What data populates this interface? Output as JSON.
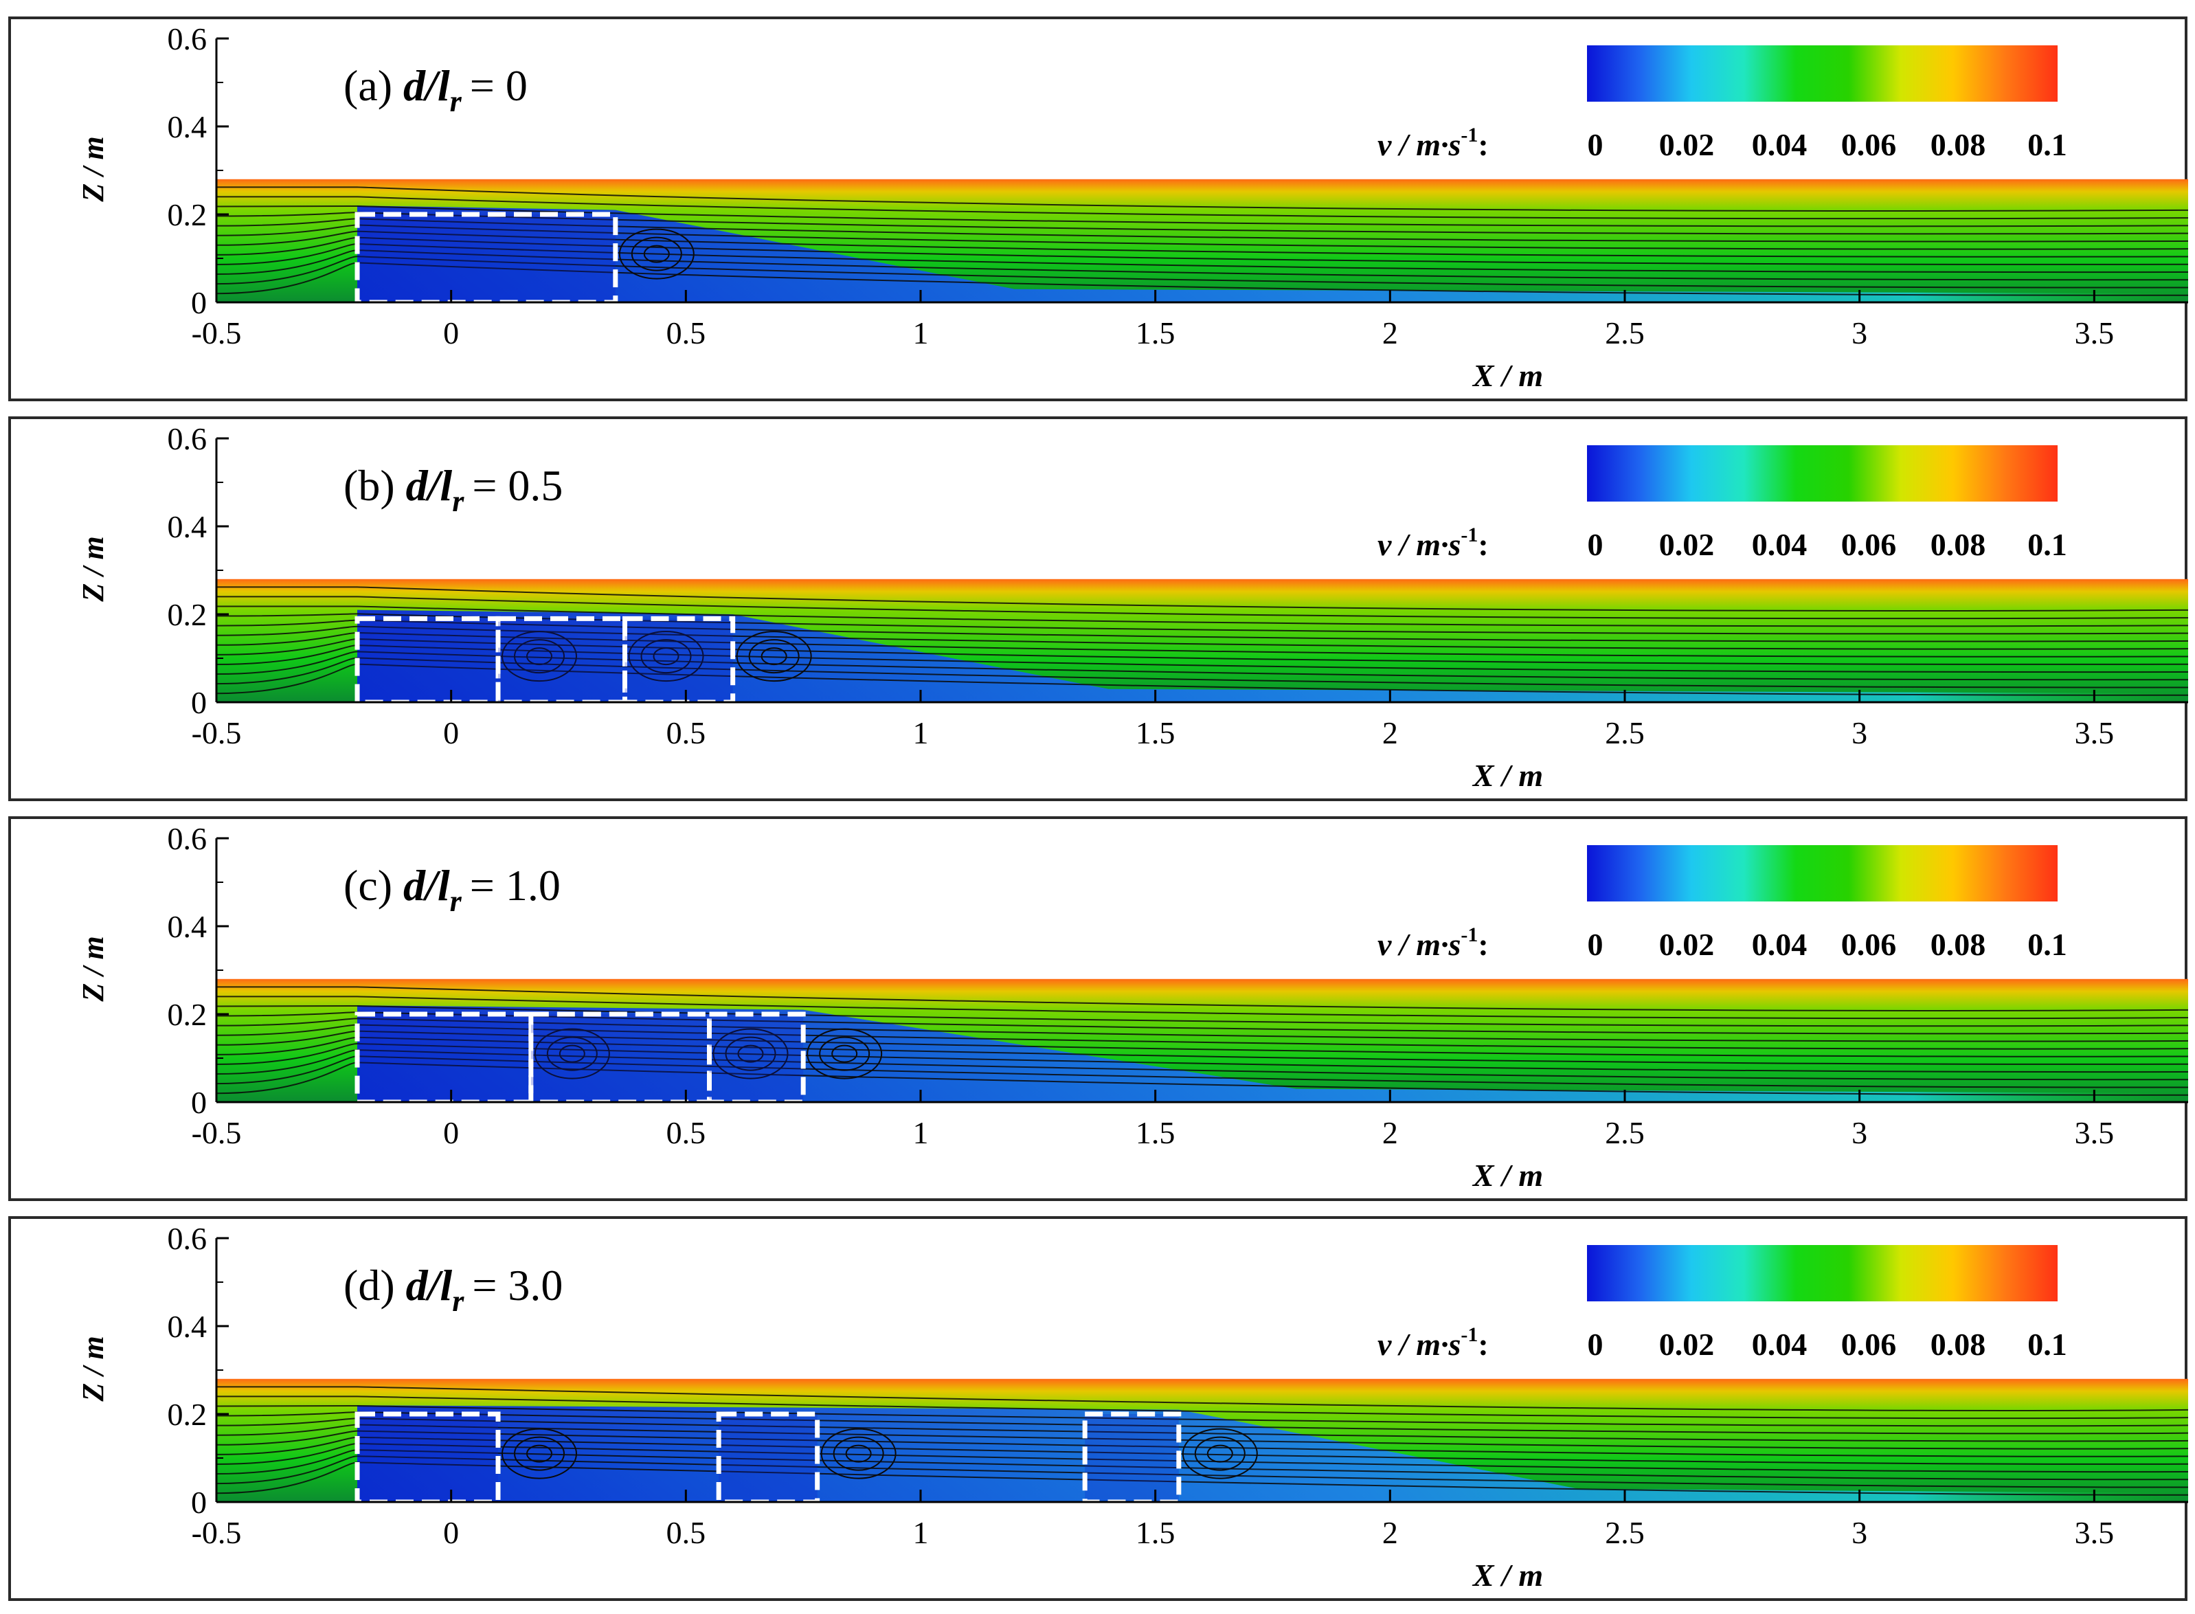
{
  "colorbar": {
    "label": "v / m·s",
    "label_sup": "-1",
    "label_colon": ":",
    "ticks": [
      "0",
      "0.02",
      "0.04",
      "0.06",
      "0.08",
      "0.1"
    ],
    "range": [
      0,
      0.1
    ],
    "colors": [
      "#0a14d8",
      "#1e64f0",
      "#1ec8f0",
      "#20e6c0",
      "#14d814",
      "#28d200",
      "#d2e600",
      "#ffc800",
      "#ff7814",
      "#ff3214"
    ]
  },
  "colors": {
    "streamline": "#0a0a0a",
    "block_outline": "#ffffff",
    "frame": "#2a2a2a"
  },
  "chart_data": [
    {
      "type": "contour",
      "panel_label": "(a)",
      "param_label": "d/l",
      "param_sub": "r",
      "param_value": "= 0",
      "xlabel": "X / m",
      "ylabel": "Z / m",
      "xlim": [
        -0.5,
        3.7
      ],
      "ylim": [
        0,
        0.6
      ],
      "xticks": [
        "-0.5",
        "0",
        "0.5",
        "1",
        "1.5",
        "2",
        "2.5",
        "3",
        "3.5"
      ],
      "yticks": [
        "0",
        "0.2",
        "0.4",
        "0.6"
      ],
      "water_depth": 0.28,
      "blocks": [
        {
          "x": [
            -0.2,
            0.35
          ],
          "height": 0.2
        }
      ],
      "wake_end": 1.2
    },
    {
      "type": "contour",
      "panel_label": "(b)",
      "param_label": "d/l",
      "param_sub": "r",
      "param_value": "= 0.5",
      "xlabel": "X / m",
      "ylabel": "Z / m",
      "xlim": [
        -0.5,
        3.7
      ],
      "ylim": [
        0,
        0.6
      ],
      "xticks": [
        "-0.5",
        "0",
        "0.5",
        "1",
        "1.5",
        "2",
        "2.5",
        "3",
        "3.5"
      ],
      "yticks": [
        "0",
        "0.2",
        "0.4",
        "0.6"
      ],
      "water_depth": 0.28,
      "blocks": [
        {
          "x": [
            -0.2,
            0.1
          ],
          "height": 0.19
        },
        {
          "x": [
            0.1,
            0.37
          ],
          "height": 0.19
        },
        {
          "x": [
            0.37,
            0.6
          ],
          "height": 0.19
        }
      ],
      "wake_end": 1.4
    },
    {
      "type": "contour",
      "panel_label": "(c)",
      "param_label": "d/l",
      "param_sub": "r",
      "param_value": "= 1.0",
      "xlabel": "X / m",
      "ylabel": "Z / m",
      "xlim": [
        -0.5,
        3.7
      ],
      "ylim": [
        0,
        0.6
      ],
      "xticks": [
        "-0.5",
        "0",
        "0.5",
        "1",
        "1.5",
        "2",
        "2.5",
        "3",
        "3.5"
      ],
      "yticks": [
        "0",
        "0.2",
        "0.4",
        "0.6"
      ],
      "water_depth": 0.28,
      "blocks": [
        {
          "x": [
            -0.2,
            0.17
          ],
          "height": 0.2
        },
        {
          "x": [
            0.17,
            0.55
          ],
          "height": 0.2
        },
        {
          "x": [
            0.55,
            0.75
          ],
          "height": 0.2
        }
      ],
      "wake_end": 1.8
    },
    {
      "type": "contour",
      "panel_label": "(d)",
      "param_label": "d/l",
      "param_sub": "r",
      "param_value": "= 3.0",
      "xlabel": "X / m",
      "ylabel": "Z / m",
      "xlim": [
        -0.5,
        3.7
      ],
      "ylim": [
        0,
        0.6
      ],
      "xticks": [
        "-0.5",
        "0",
        "0.5",
        "1",
        "1.5",
        "2",
        "2.5",
        "3",
        "3.5"
      ],
      "yticks": [
        "0",
        "0.2",
        "0.4",
        "0.6"
      ],
      "water_depth": 0.28,
      "blocks": [
        {
          "x": [
            -0.2,
            0.1
          ],
          "height": 0.2
        },
        {
          "x": [
            0.57,
            0.78
          ],
          "height": 0.2
        },
        {
          "x": [
            1.35,
            1.55
          ],
          "height": 0.2
        }
      ],
      "wake_end": 2.4
    }
  ]
}
